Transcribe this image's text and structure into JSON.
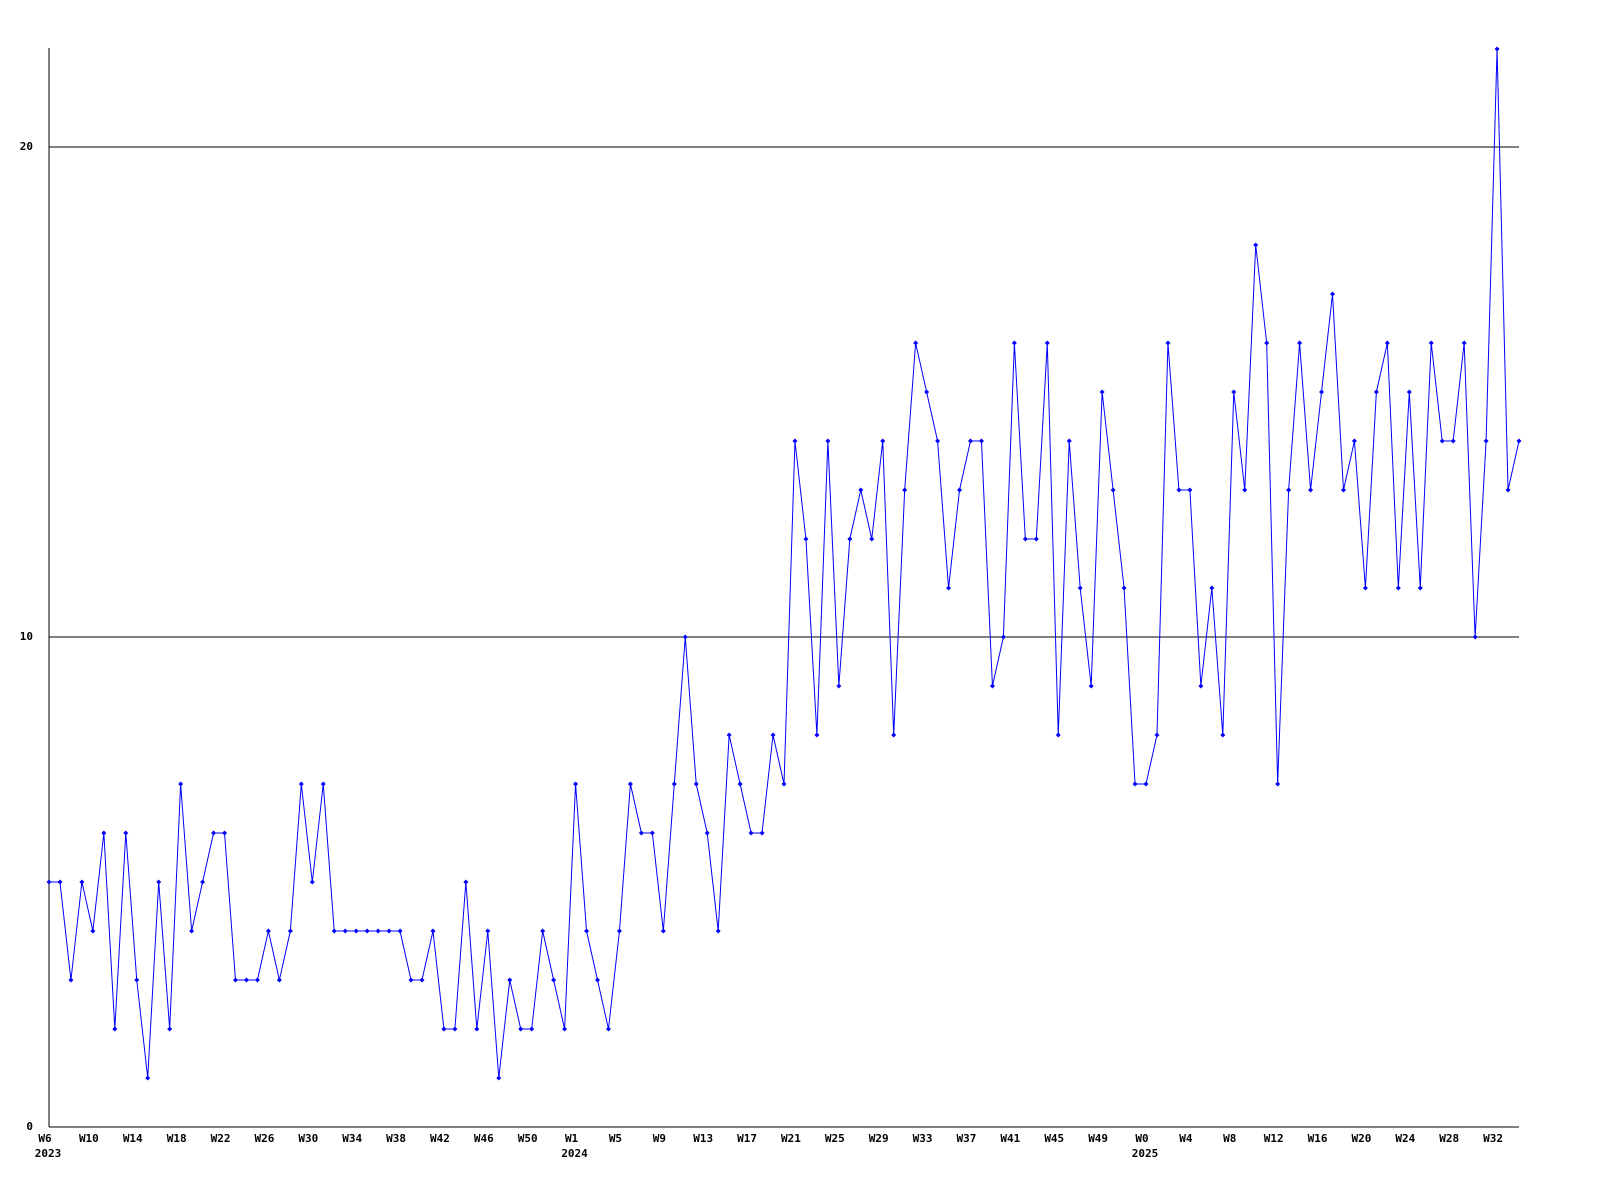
{
  "chart_data": {
    "type": "line",
    "categories": [
      "W6",
      null,
      null,
      null,
      "W10",
      null,
      null,
      null,
      "W14",
      null,
      null,
      null,
      "W18",
      null,
      null,
      null,
      "W22",
      null,
      null,
      null,
      "W26",
      null,
      null,
      null,
      "W30",
      null,
      null,
      null,
      "W34",
      null,
      null,
      null,
      "W38",
      null,
      null,
      null,
      "W42",
      null,
      null,
      null,
      "W46",
      null,
      null,
      null,
      "W50",
      null,
      null,
      null,
      "W1",
      null,
      null,
      null,
      "W5",
      null,
      null,
      null,
      "W9",
      null,
      null,
      null,
      "W13",
      null,
      null,
      null,
      "W17",
      null,
      null,
      null,
      "W21",
      null,
      null,
      null,
      "W25",
      null,
      null,
      null,
      "W29",
      null,
      null,
      null,
      "W33",
      null,
      null,
      null,
      "W37",
      null,
      null,
      null,
      "W41",
      null,
      null,
      null,
      "W45",
      null,
      null,
      null,
      "W49",
      null,
      null,
      null,
      "W0",
      null,
      null,
      null,
      "W4",
      null,
      null,
      null,
      "W8",
      null,
      null,
      null,
      "W12",
      null,
      null,
      null,
      "W16",
      null,
      null,
      null,
      "W20",
      null,
      null,
      null,
      "W24",
      null,
      null,
      null,
      "W28",
      null,
      null,
      null,
      "W32",
      null,
      null
    ],
    "x_sublabels": [
      "2023",
      null,
      null,
      null,
      null,
      null,
      null,
      null,
      null,
      null,
      null,
      null,
      null,
      null,
      null,
      null,
      null,
      null,
      null,
      null,
      null,
      null,
      null,
      null,
      null,
      null,
      null,
      null,
      null,
      null,
      null,
      null,
      null,
      null,
      null,
      null,
      null,
      null,
      null,
      null,
      null,
      null,
      null,
      null,
      null,
      null,
      null,
      null,
      "2024",
      null,
      null,
      null,
      null,
      null,
      null,
      null,
      null,
      null,
      null,
      null,
      null,
      null,
      null,
      null,
      null,
      null,
      null,
      null,
      null,
      null,
      null,
      null,
      null,
      null,
      null,
      null,
      null,
      null,
      null,
      null,
      null,
      null,
      null,
      null,
      null,
      null,
      null,
      null,
      null,
      null,
      null,
      null,
      null,
      null,
      null,
      null,
      null,
      null,
      null,
      null,
      "2025",
      null,
      null,
      null,
      null,
      null,
      null,
      null,
      null,
      null,
      null,
      null,
      null,
      null,
      null,
      null,
      null,
      null,
      null,
      null,
      null,
      null,
      null,
      null,
      null,
      null,
      null,
      null,
      null,
      null,
      null,
      null,
      null,
      null,
      null
    ],
    "series": [
      {
        "color": "#0000ff",
        "values": [
          5,
          5,
          3,
          5,
          4,
          6,
          2,
          6,
          3,
          1,
          5,
          2,
          7,
          4,
          5,
          6,
          6,
          3,
          3,
          3,
          4,
          3,
          4,
          7,
          5,
          7,
          4,
          4,
          4,
          4,
          4,
          4,
          4,
          3,
          3,
          4,
          2,
          2,
          5,
          2,
          4,
          1,
          3,
          2,
          2,
          4,
          3,
          2,
          7,
          4,
          3,
          2,
          4,
          7,
          6,
          6,
          4,
          7,
          10,
          7,
          6,
          4,
          8,
          7,
          6,
          6,
          8,
          7,
          14,
          12,
          8,
          14,
          9,
          12,
          13,
          12,
          14,
          8,
          13,
          16,
          15,
          14,
          11,
          13,
          14,
          14,
          9,
          10,
          16,
          12,
          12,
          16,
          8,
          14,
          11,
          9,
          15,
          13,
          11,
          7,
          7,
          8,
          16,
          13,
          13,
          9,
          11,
          8,
          15,
          13,
          18,
          16,
          7,
          13,
          16,
          13,
          15,
          17,
          13,
          14,
          11,
          15,
          16,
          11,
          15,
          11,
          16,
          14,
          14,
          16,
          10,
          14,
          22,
          13,
          14
        ]
      }
    ],
    "ylim": [
      0,
      22
    ],
    "yticks": [
      0,
      10,
      20
    ],
    "grid": true,
    "grid_color": "#000000"
  }
}
